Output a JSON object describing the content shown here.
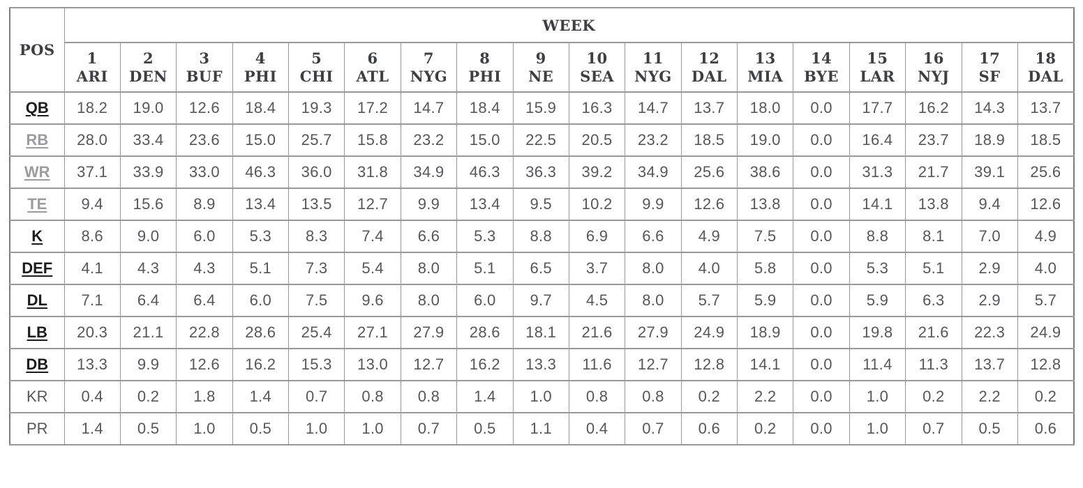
{
  "table": {
    "pos_header": "POS",
    "week_header": "WEEK",
    "weeks": [
      {
        "num": "1",
        "team": "ARI"
      },
      {
        "num": "2",
        "team": "DEN"
      },
      {
        "num": "3",
        "team": "BUF"
      },
      {
        "num": "4",
        "team": "PHI"
      },
      {
        "num": "5",
        "team": "CHI"
      },
      {
        "num": "6",
        "team": "ATL"
      },
      {
        "num": "7",
        "team": "NYG"
      },
      {
        "num": "8",
        "team": "PHI"
      },
      {
        "num": "9",
        "team": "NE"
      },
      {
        "num": "10",
        "team": "SEA"
      },
      {
        "num": "11",
        "team": "NYG"
      },
      {
        "num": "12",
        "team": "DAL"
      },
      {
        "num": "13",
        "team": "MIA"
      },
      {
        "num": "14",
        "team": "BYE"
      },
      {
        "num": "15",
        "team": "LAR"
      },
      {
        "num": "16",
        "team": "NYJ"
      },
      {
        "num": "17",
        "team": "SF"
      },
      {
        "num": "18",
        "team": "DAL"
      }
    ],
    "rows": [
      {
        "pos": "QB",
        "style": "link-dark",
        "link": true,
        "values": [
          "18.2",
          "19.0",
          "12.6",
          "18.4",
          "19.3",
          "17.2",
          "14.7",
          "18.4",
          "15.9",
          "16.3",
          "14.7",
          "13.7",
          "18.0",
          "0.0",
          "17.7",
          "16.2",
          "14.3",
          "13.7"
        ]
      },
      {
        "pos": "RB",
        "style": "link-gray",
        "link": true,
        "values": [
          "28.0",
          "33.4",
          "23.6",
          "15.0",
          "25.7",
          "15.8",
          "23.2",
          "15.0",
          "22.5",
          "20.5",
          "23.2",
          "18.5",
          "19.0",
          "0.0",
          "16.4",
          "23.7",
          "18.9",
          "18.5"
        ]
      },
      {
        "pos": "WR",
        "style": "link-gray",
        "link": true,
        "values": [
          "37.1",
          "33.9",
          "33.0",
          "46.3",
          "36.0",
          "31.8",
          "34.9",
          "46.3",
          "36.3",
          "39.2",
          "34.9",
          "25.6",
          "38.6",
          "0.0",
          "31.3",
          "21.7",
          "39.1",
          "25.6"
        ]
      },
      {
        "pos": "TE",
        "style": "link-gray",
        "link": true,
        "values": [
          "9.4",
          "15.6",
          "8.9",
          "13.4",
          "13.5",
          "12.7",
          "9.9",
          "13.4",
          "9.5",
          "10.2",
          "9.9",
          "12.6",
          "13.8",
          "0.0",
          "14.1",
          "13.8",
          "9.4",
          "12.6"
        ]
      },
      {
        "pos": "K",
        "style": "link-dark",
        "link": true,
        "values": [
          "8.6",
          "9.0",
          "6.0",
          "5.3",
          "8.3",
          "7.4",
          "6.6",
          "5.3",
          "8.8",
          "6.9",
          "6.6",
          "4.9",
          "7.5",
          "0.0",
          "8.8",
          "8.1",
          "7.0",
          "4.9"
        ]
      },
      {
        "pos": "DEF",
        "style": "link-dark",
        "link": true,
        "values": [
          "4.1",
          "4.3",
          "4.3",
          "5.1",
          "7.3",
          "5.4",
          "8.0",
          "5.1",
          "6.5",
          "3.7",
          "8.0",
          "4.0",
          "5.8",
          "0.0",
          "5.3",
          "5.1",
          "2.9",
          "4.0"
        ]
      },
      {
        "pos": "DL",
        "style": "link-dark",
        "link": true,
        "values": [
          "7.1",
          "6.4",
          "6.4",
          "6.0",
          "7.5",
          "9.6",
          "8.0",
          "6.0",
          "9.7",
          "4.5",
          "8.0",
          "5.7",
          "5.9",
          "0.0",
          "5.9",
          "6.3",
          "2.9",
          "5.7"
        ]
      },
      {
        "pos": "LB",
        "style": "link-dark",
        "link": true,
        "values": [
          "20.3",
          "21.1",
          "22.8",
          "28.6",
          "25.4",
          "27.1",
          "27.9",
          "28.6",
          "18.1",
          "21.6",
          "27.9",
          "24.9",
          "18.9",
          "0.0",
          "19.8",
          "21.6",
          "22.3",
          "24.9"
        ]
      },
      {
        "pos": "DB",
        "style": "link-dark",
        "link": true,
        "values": [
          "13.3",
          "9.9",
          "12.6",
          "16.2",
          "15.3",
          "13.0",
          "12.7",
          "16.2",
          "13.3",
          "11.6",
          "12.7",
          "12.8",
          "14.1",
          "0.0",
          "11.4",
          "11.3",
          "13.7",
          "12.8"
        ]
      },
      {
        "pos": "KR",
        "style": "plain",
        "link": false,
        "values": [
          "0.4",
          "0.2",
          "1.8",
          "1.4",
          "0.7",
          "0.8",
          "0.8",
          "1.4",
          "1.0",
          "0.8",
          "0.8",
          "0.2",
          "2.2",
          "0.0",
          "1.0",
          "0.2",
          "2.2",
          "0.2"
        ]
      },
      {
        "pos": "PR",
        "style": "plain",
        "link": false,
        "values": [
          "1.4",
          "0.5",
          "1.0",
          "0.5",
          "1.0",
          "1.0",
          "0.7",
          "0.5",
          "1.1",
          "0.4",
          "0.7",
          "0.6",
          "0.2",
          "0.0",
          "1.0",
          "0.7",
          "0.5",
          "0.6"
        ]
      }
    ]
  }
}
